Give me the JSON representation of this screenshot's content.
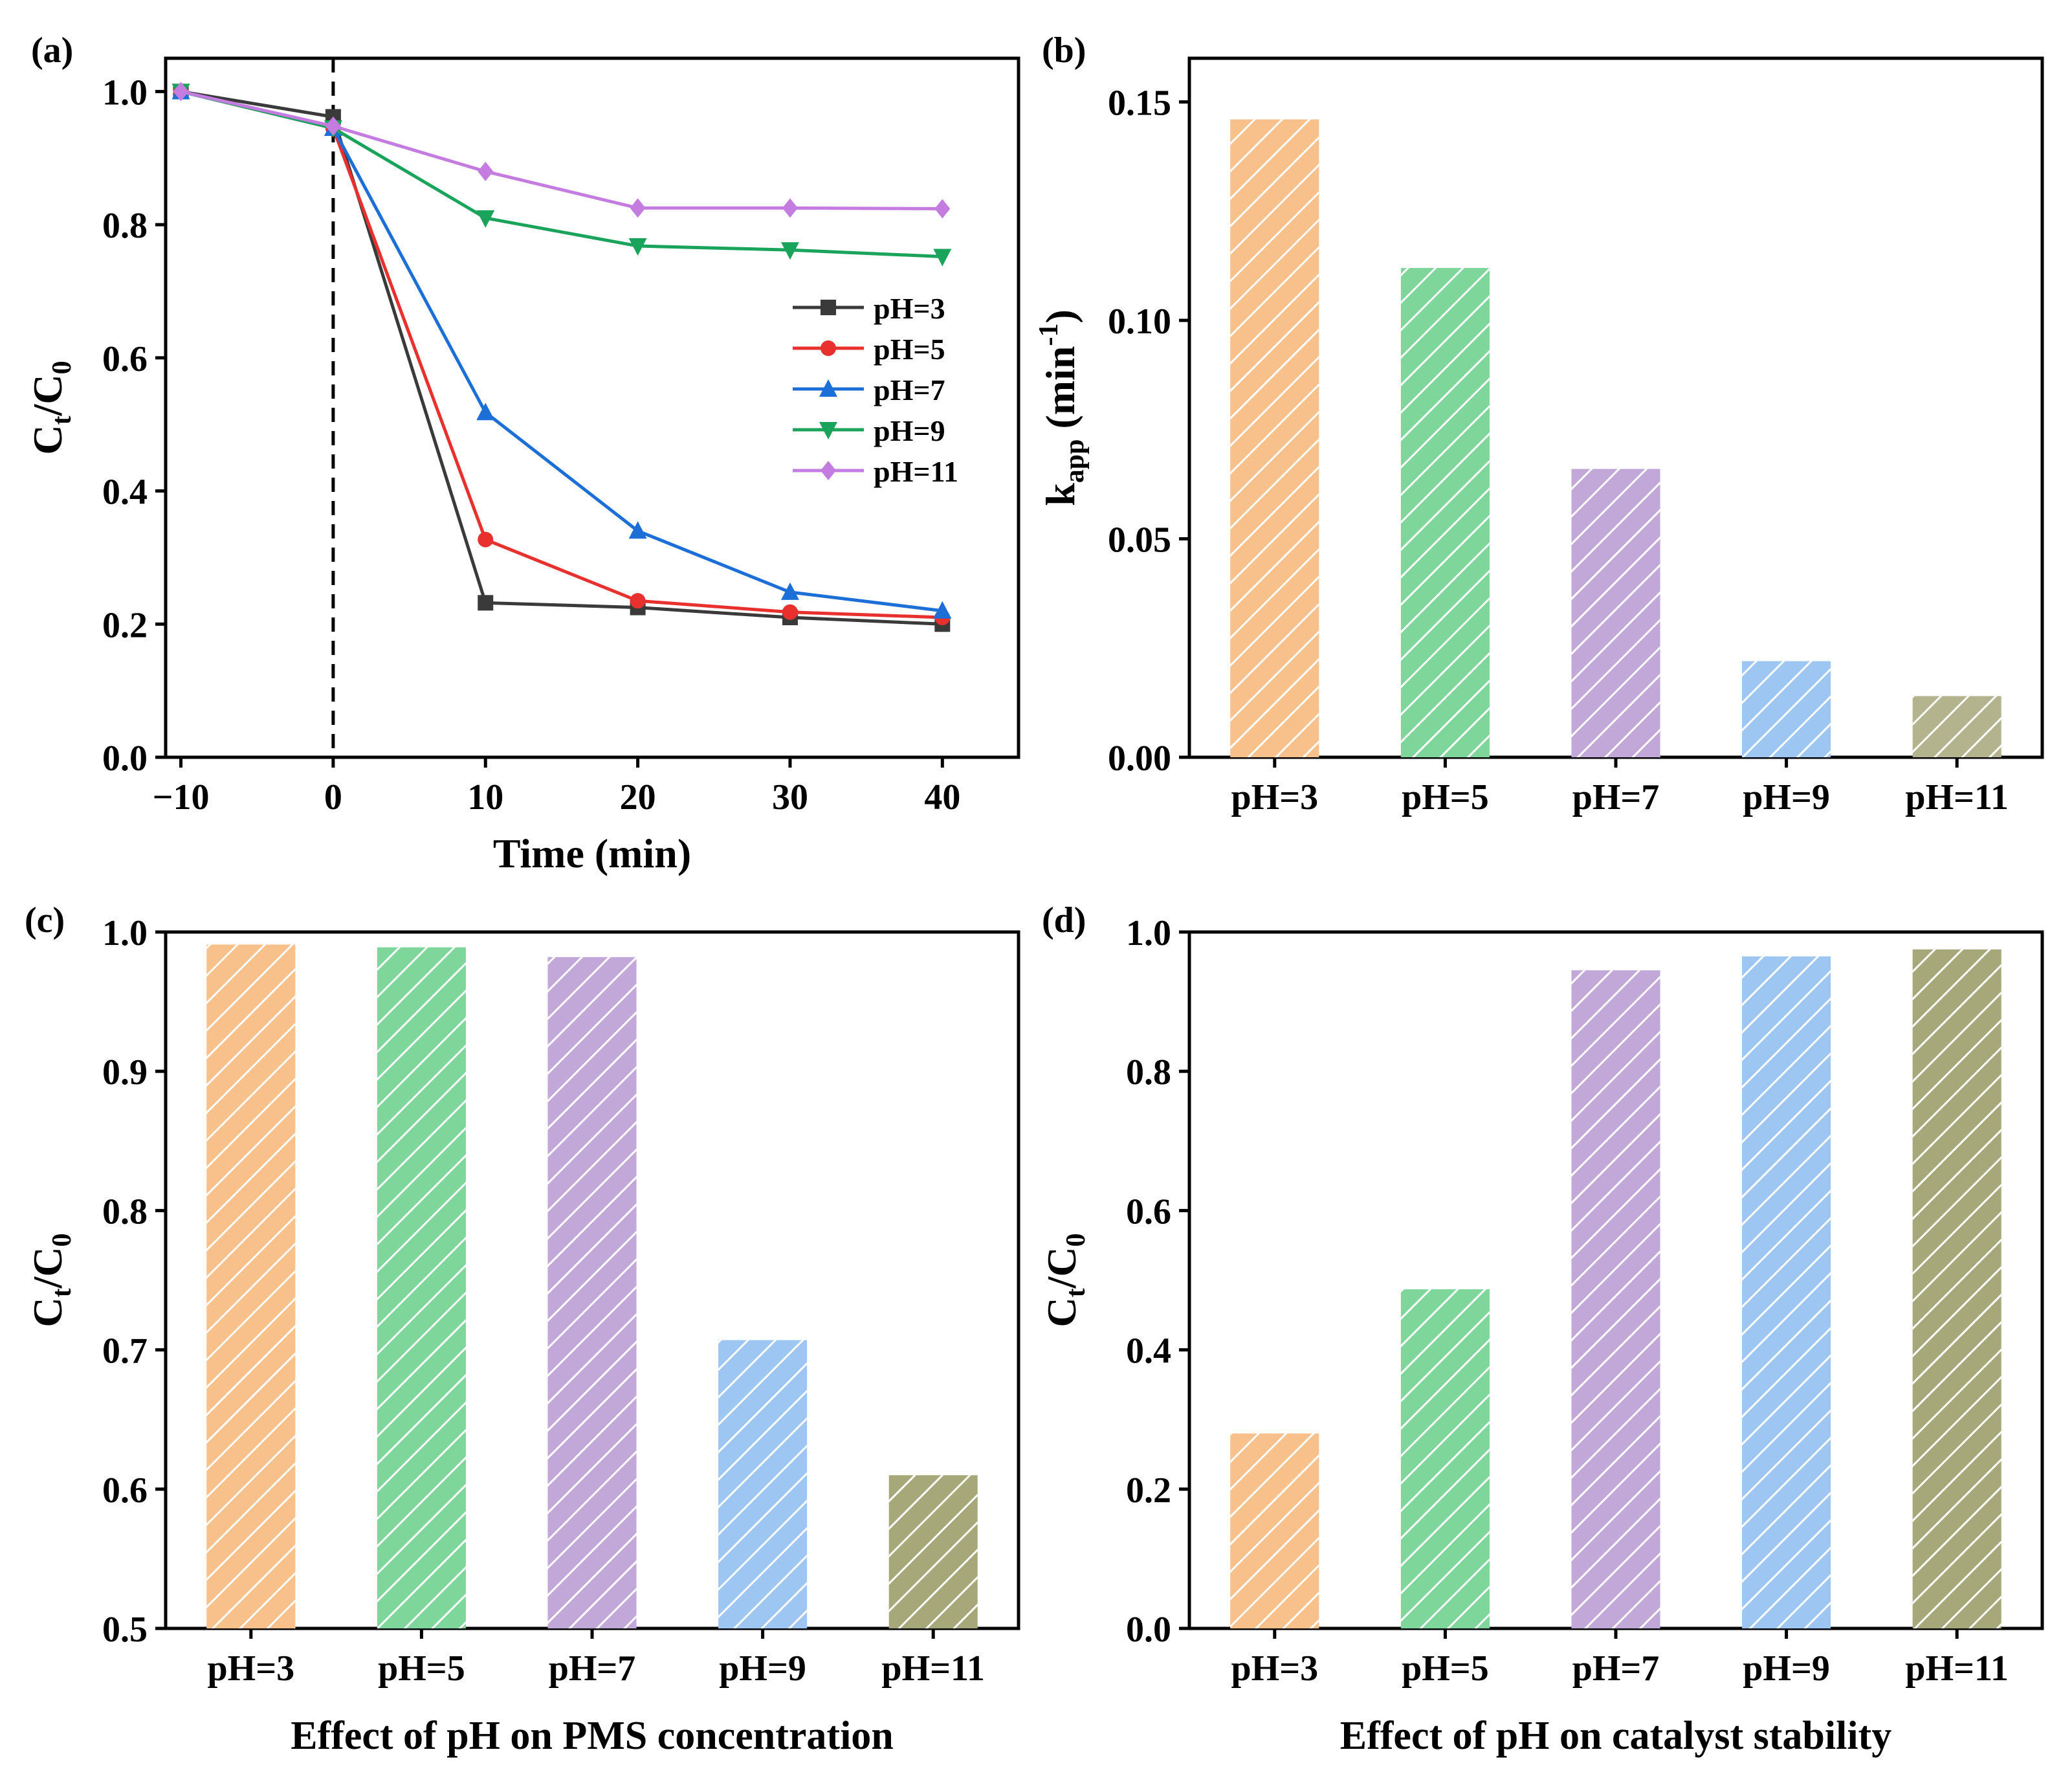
{
  "chart_data": [
    {
      "panel": "(a)",
      "type": "line",
      "xlabel": "Time (min)",
      "ylabel": {
        "main": "C",
        "sub1": "t",
        "mid": "/C",
        "sub2": "0"
      },
      "xlim": [
        -11,
        45
      ],
      "ylim": [
        0,
        1.05
      ],
      "xticks": [
        -10,
        0,
        10,
        20,
        30,
        40
      ],
      "xtick_labels": [
        "−10",
        "0",
        "10",
        "20",
        "30",
        "40"
      ],
      "yticks": [
        0,
        0.2,
        0.4,
        0.6,
        0.8,
        1.0
      ],
      "ytick_labels": [
        "0.0",
        "0.2",
        "0.4",
        "0.6",
        "0.8",
        "1.0"
      ],
      "vline_x": 0,
      "legend_position": "right",
      "x": [
        -10,
        0,
        10,
        20,
        30,
        40
      ],
      "series": [
        {
          "name": "pH=3",
          "color": "#3a3a3a",
          "marker": "square",
          "values": [
            1.0,
            0.962,
            0.232,
            0.225,
            0.21,
            0.2
          ]
        },
        {
          "name": "pH=5",
          "color": "#e8312f",
          "marker": "circle",
          "values": [
            1.0,
            0.945,
            0.327,
            0.235,
            0.218,
            0.21
          ]
        },
        {
          "name": "pH=7",
          "color": "#1c6fd6",
          "marker": "triangle-up",
          "values": [
            1.0,
            0.945,
            0.518,
            0.34,
            0.248,
            0.22
          ]
        },
        {
          "name": "pH=9",
          "color": "#1aa35a",
          "marker": "triangle-down",
          "values": [
            1.0,
            0.945,
            0.81,
            0.768,
            0.762,
            0.752
          ]
        },
        {
          "name": "pH=11",
          "color": "#c57ce0",
          "marker": "diamond",
          "values": [
            1.0,
            0.948,
            0.88,
            0.825,
            0.825,
            0.824
          ]
        }
      ]
    },
    {
      "panel": "(b)",
      "type": "bar",
      "categories": [
        "pH=3",
        "pH=5",
        "pH=7",
        "pH=9",
        "pH=11"
      ],
      "values": [
        0.146,
        0.112,
        0.066,
        0.022,
        0.014
      ],
      "colors": [
        "#f8c08a",
        "#7fd69a",
        "#c2a8d8",
        "#9ec6f2",
        "#b3b48e"
      ],
      "ylabel": {
        "main": "k",
        "sub": "app",
        "unit_pre": " (min",
        "sup": "-1",
        "unit_post": ")"
      },
      "ylim": [
        0,
        0.16
      ],
      "yticks": [
        0,
        0.05,
        0.1,
        0.15
      ],
      "ytick_labels": [
        "0.00",
        "0.05",
        "0.10",
        "0.15"
      ]
    },
    {
      "panel": "(c)",
      "type": "bar",
      "categories": [
        "pH=3",
        "pH=5",
        "pH=7",
        "pH=9",
        "pH=11"
      ],
      "values": [
        0.991,
        0.989,
        0.982,
        0.707,
        0.61
      ],
      "colors": [
        "#f8c08a",
        "#7fd69a",
        "#c2a8d8",
        "#9ec6f2",
        "#a6a87a"
      ],
      "xlabel": "Effect of pH on PMS concentration",
      "ylabel": {
        "main": "C",
        "sub1": "t",
        "mid": "/C",
        "sub2": "0"
      },
      "ylim": [
        0.5,
        1.0
      ],
      "yticks": [
        0.5,
        0.6,
        0.7,
        0.8,
        0.9,
        1.0
      ],
      "ytick_labels": [
        "0.5",
        "0.6",
        "0.7",
        "0.8",
        "0.9",
        "1.0"
      ]
    },
    {
      "panel": "(d)",
      "type": "bar",
      "categories": [
        "pH=3",
        "pH=5",
        "pH=7",
        "pH=9",
        "pH=11"
      ],
      "values": [
        0.28,
        0.487,
        0.945,
        0.965,
        0.975
      ],
      "colors": [
        "#f8c08a",
        "#7fd69a",
        "#c2a8d8",
        "#9ec6f2",
        "#a6a87a"
      ],
      "xlabel": "Effect of pH on catalyst stability",
      "ylabel": {
        "main": "C",
        "sub1": "t",
        "mid": "/C",
        "sub2": "0"
      },
      "ylim": [
        0,
        1.0
      ],
      "yticks": [
        0,
        0.2,
        0.4,
        0.6,
        0.8,
        1.0
      ],
      "ytick_labels": [
        "0.0",
        "0.2",
        "0.4",
        "0.6",
        "0.8",
        "1.0"
      ]
    }
  ]
}
